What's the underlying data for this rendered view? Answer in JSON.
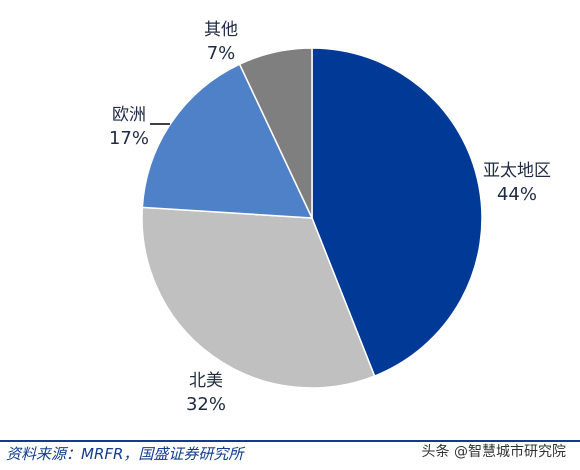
{
  "chart_data": {
    "type": "pie",
    "title": "",
    "slices": [
      {
        "label": "亚太地区",
        "value": 44,
        "value_label": "44%",
        "color": "#003a96"
      },
      {
        "label": "北美",
        "value": 32,
        "value_label": "32%",
        "color": "#c0c0c0"
      },
      {
        "label": "欧洲",
        "value": 17,
        "value_label": "17%",
        "color": "#4f81c8"
      },
      {
        "label": "其他",
        "value": 7,
        "value_label": "7%",
        "color": "#7f7f7f"
      }
    ],
    "start": "12 o'clock",
    "direction": "clockwise",
    "legend": "none"
  },
  "source": "资料来源：MRFR，国盛证券研究所",
  "watermark": "头条 @智慧城市研究院"
}
